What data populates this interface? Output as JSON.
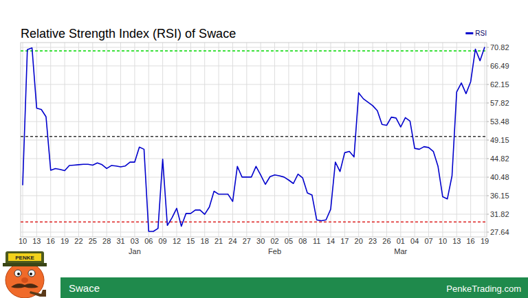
{
  "chart_data": {
    "type": "line",
    "title": "Relative Strength Index (RSI) of Swace",
    "categories": [
      "10",
      null,
      null,
      "13",
      null,
      null,
      "16",
      null,
      null,
      "19",
      null,
      null,
      "22",
      null,
      null,
      "25",
      null,
      null,
      "28",
      null,
      null,
      "31",
      null,
      null,
      "03",
      null,
      null,
      "06",
      null,
      null,
      "09",
      null,
      null,
      "12",
      null,
      null,
      "15",
      null,
      null,
      "18",
      null,
      null,
      "21",
      null,
      null,
      "24",
      null,
      null,
      "27",
      null,
      null,
      "30",
      null,
      null,
      "02",
      null,
      null,
      "05",
      null,
      null,
      "08",
      null,
      null,
      "11",
      null,
      null,
      "14",
      null,
      null,
      "17",
      null,
      null,
      "20",
      null,
      null,
      "23",
      null,
      null,
      "26",
      null,
      null,
      "01",
      null,
      null,
      "04",
      null,
      null,
      "07",
      null,
      null,
      "10",
      null,
      null,
      "13",
      null,
      null,
      "16",
      null,
      null,
      "19"
    ],
    "category_groups": [
      {
        "label": "Jan",
        "index": 24
      },
      {
        "label": "Feb",
        "index": 54
      },
      {
        "label": "Mar",
        "index": 81
      }
    ],
    "series": [
      {
        "name": "RSI",
        "color": "#0000cc",
        "values": [
          38.6,
          70.3,
          70.7,
          56.6,
          56.3,
          54.6,
          42.1,
          42.5,
          42.3,
          42.0,
          43.2,
          43.3,
          43.4,
          43.5,
          43.5,
          43.3,
          43.8,
          43.4,
          42.5,
          43.2,
          43.1,
          42.9,
          43.1,
          44.0,
          44.0,
          47.5,
          47.0,
          27.8,
          27.8,
          28.5,
          44.7,
          29.2,
          31.0,
          33.2,
          29.0,
          32.0,
          32.0,
          32.8,
          32.8,
          31.8,
          33.5,
          37.2,
          36.5,
          36.5,
          36.5,
          34.8,
          43.0,
          40.5,
          40.5,
          40.5,
          43.0,
          41.0,
          38.8,
          40.6,
          41.0,
          40.8,
          40.5,
          39.8,
          39.0,
          41.2,
          40.3,
          36.8,
          36.3,
          30.5,
          30.3,
          30.5,
          33.0,
          44.0,
          41.8,
          46.2,
          46.5,
          45.2,
          60.2,
          58.8,
          58.0,
          57.2,
          56.0,
          52.8,
          52.6,
          54.5,
          54.3,
          52.2,
          54.4,
          53.6,
          47.2,
          47.0,
          47.6,
          47.4,
          46.5,
          43.0,
          35.9,
          35.4,
          40.8,
          60.4,
          62.5,
          60.0,
          62.8,
          70.4,
          67.7,
          70.9
        ]
      }
    ],
    "ylim": [
      26.52,
      71.94
    ],
    "yticks": [
      27.64,
      31.82,
      36.15,
      40.48,
      44.82,
      49.15,
      53.48,
      57.82,
      62.15,
      66.49,
      70.82
    ],
    "reference_lines": [
      {
        "value": 70,
        "color": "#22dd22"
      },
      {
        "value": 50,
        "color": "#333333"
      },
      {
        "value": 30,
        "color": "#dd2222"
      }
    ],
    "grid": true,
    "legend": "top-right"
  },
  "footer": {
    "logo": "PENKE",
    "name": "Swace",
    "site": "PenkeTrading.com"
  }
}
